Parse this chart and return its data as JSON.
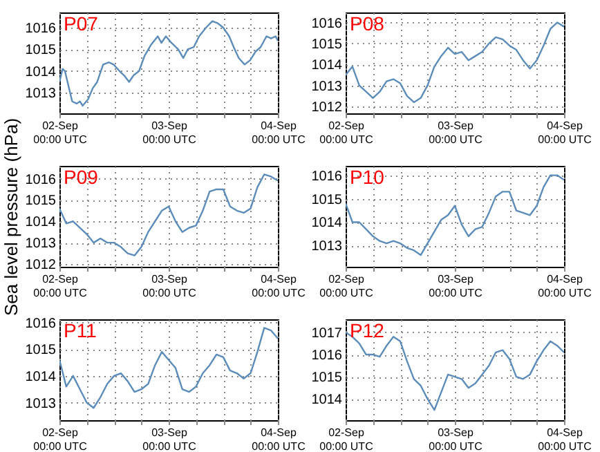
{
  "chart_data": [
    {
      "type": "line",
      "title": "P07",
      "x": [
        "--09-02T00:00",
        "--09-02T00:42",
        "--09-02T01:12",
        "--09-02T02:00",
        "--09-02T02:48",
        "--09-02T03:48",
        "--09-02T04:30",
        "--09-02T05:06",
        "--09-02T06:18",
        "--09-02T07:18",
        "--09-02T08:18",
        "--09-02T09:36",
        "--09-02T10:54",
        "--09-02T11:54",
        "--09-02T13:12",
        "--09-02T14:12",
        "--09-02T15:18",
        "--09-02T16:18",
        "--09-02T17:30",
        "--09-02T18:42",
        "--09-02T20:06",
        "--09-02T21:36",
        "--09-02T22:24",
        "--09-02T23:24",
        "--09-03T00:36",
        "--09-03T02:06",
        "--09-03T03:12",
        "--09-03T04:12",
        "--09-03T05:30",
        "--09-03T06:42",
        "--09-03T08:12",
        "--09-03T09:36",
        "--09-03T10:48",
        "--09-03T12:00",
        "--09-03T13:18",
        "--09-03T14:18",
        "--09-03T15:24",
        "--09-03T16:42",
        "--09-03T17:54",
        "--09-03T19:06",
        "--09-03T20:12",
        "--09-03T21:30",
        "--09-03T22:30",
        "--09-03T23:30",
        "--09-04T00:00"
      ],
      "series": [
        {
          "color": "#5b8db8",
          "values": [
            1013.5,
            1014.1,
            1014.0,
            1013.3,
            1012.6,
            1012.5,
            1012.6,
            1012.4,
            1012.7,
            1013.2,
            1013.5,
            1014.3,
            1014.4,
            1014.3,
            1014.0,
            1013.8,
            1013.5,
            1013.8,
            1014.0,
            1014.7,
            1015.2,
            1015.6,
            1015.3,
            1015.6,
            1015.3,
            1015.0,
            1014.6,
            1015.0,
            1015.1,
            1015.6,
            1016.0,
            1016.3,
            1016.2,
            1016.0,
            1015.6,
            1015.1,
            1014.6,
            1014.3,
            1014.5,
            1014.9,
            1015.1,
            1015.6,
            1015.5,
            1015.6,
            1015.4
          ]
        }
      ],
      "xlim": [
        "--09-02T00:00",
        "--09-04T00:00"
      ],
      "xticks": [
        {
          "value": "--09-02T00:00",
          "label": "02-Sep\n00:00 UTC"
        },
        {
          "value": "--09-02T06:00",
          "label": null
        },
        {
          "value": "--09-02T12:00",
          "label": null
        },
        {
          "value": "--09-02T18:00",
          "label": null
        },
        {
          "value": "--09-03T00:00",
          "label": "03-Sep\n00:00 UTC"
        },
        {
          "value": "--09-03T06:00",
          "label": null
        },
        {
          "value": "--09-03T12:00",
          "label": null
        },
        {
          "value": "--09-03T18:00",
          "label": null
        },
        {
          "value": "--09-04T00:00",
          "label": "04-Sep\n00:00 UTC"
        }
      ],
      "ylim": [
        1012.05,
        1016.7
      ],
      "yticks": [
        1013,
        1014,
        1015,
        1016
      ],
      "grid": true,
      "line_style": "solid"
    },
    {
      "type": "line",
      "title": "P08",
      "x": [
        "--09-02T00:00",
        "--09-02T01:30",
        "--09-02T03:00",
        "--09-02T04:30",
        "--09-02T06:00",
        "--09-02T07:30",
        "--09-02T09:00",
        "--09-02T10:30",
        "--09-02T12:00",
        "--09-02T13:30",
        "--09-02T15:00",
        "--09-02T16:30",
        "--09-02T18:00",
        "--09-02T19:30",
        "--09-02T21:00",
        "--09-02T22:30",
        "--09-03T00:00",
        "--09-03T01:30",
        "--09-03T03:00",
        "--09-03T04:30",
        "--09-03T06:00",
        "--09-03T07:30",
        "--09-03T09:00",
        "--09-03T10:30",
        "--09-03T12:00",
        "--09-03T13:30",
        "--09-03T15:00",
        "--09-03T16:30",
        "--09-03T18:00",
        "--09-03T19:30",
        "--09-03T21:00",
        "--09-03T22:30",
        "--09-04T00:00"
      ],
      "series": [
        {
          "color": "#5b8db8",
          "values": [
            1013.5,
            1013.9,
            1013.0,
            1012.7,
            1012.4,
            1012.7,
            1013.2,
            1013.3,
            1013.1,
            1012.5,
            1012.2,
            1012.4,
            1013.0,
            1013.9,
            1014.4,
            1014.8,
            1014.5,
            1014.6,
            1014.2,
            1014.4,
            1014.6,
            1015.0,
            1015.3,
            1015.2,
            1014.9,
            1014.7,
            1014.2,
            1013.8,
            1014.2,
            1014.9,
            1015.7,
            1016.0,
            1015.8
          ]
        }
      ],
      "xlim": [
        "--09-02T00:00",
        "--09-04T00:00"
      ],
      "xticks": [
        {
          "value": "--09-02T00:00",
          "label": "02-Sep\n00:00 UTC"
        },
        {
          "value": "--09-02T06:00",
          "label": null
        },
        {
          "value": "--09-02T12:00",
          "label": null
        },
        {
          "value": "--09-02T18:00",
          "label": null
        },
        {
          "value": "--09-03T00:00",
          "label": "03-Sep\n00:00 UTC"
        },
        {
          "value": "--09-03T06:00",
          "label": null
        },
        {
          "value": "--09-03T12:00",
          "label": null
        },
        {
          "value": "--09-03T18:00",
          "label": null
        },
        {
          "value": "--09-04T00:00",
          "label": "04-Sep\n00:00 UTC"
        }
      ],
      "ylim": [
        1011.67,
        1016.48
      ],
      "yticks": [
        1012,
        1013,
        1014,
        1015,
        1016
      ],
      "grid": true,
      "line_style": "solid"
    },
    {
      "type": "line",
      "title": "P09",
      "ylabel": "Sea level pressure (hPa)",
      "x": [
        "--09-02T00:00",
        "--09-02T01:30",
        "--09-02T03:00",
        "--09-02T04:30",
        "--09-02T06:00",
        "--09-02T07:30",
        "--09-02T09:00",
        "--09-02T10:30",
        "--09-02T12:00",
        "--09-02T13:30",
        "--09-02T15:00",
        "--09-02T16:30",
        "--09-02T18:00",
        "--09-02T19:30",
        "--09-02T21:00",
        "--09-02T22:30",
        "--09-03T00:00",
        "--09-03T01:30",
        "--09-03T03:00",
        "--09-03T04:30",
        "--09-03T06:00",
        "--09-03T07:30",
        "--09-03T09:00",
        "--09-03T10:30",
        "--09-03T12:00",
        "--09-03T13:30",
        "--09-03T15:00",
        "--09-03T16:30",
        "--09-03T18:00",
        "--09-03T19:30",
        "--09-03T21:00",
        "--09-03T22:30",
        "--09-04T00:00"
      ],
      "series": [
        {
          "color": "#5b8db8",
          "values": [
            1014.6,
            1013.9,
            1014.0,
            1013.7,
            1013.4,
            1013.0,
            1013.2,
            1013.0,
            1013.0,
            1012.8,
            1012.5,
            1012.4,
            1012.8,
            1013.5,
            1014.0,
            1014.5,
            1014.7,
            1014.0,
            1013.5,
            1013.7,
            1013.8,
            1014.5,
            1015.4,
            1015.5,
            1015.5,
            1014.7,
            1014.5,
            1014.4,
            1014.6,
            1015.6,
            1016.2,
            1016.1,
            1015.9
          ]
        }
      ],
      "xlim": [
        "--09-02T00:00",
        "--09-04T00:00"
      ],
      "xticks": [
        {
          "value": "--09-02T00:00",
          "label": "02-Sep\n00:00 UTC"
        },
        {
          "value": "--09-02T06:00",
          "label": null
        },
        {
          "value": "--09-02T12:00",
          "label": null
        },
        {
          "value": "--09-02T18:00",
          "label": null
        },
        {
          "value": "--09-03T00:00",
          "label": "03-Sep\n00:00 UTC"
        },
        {
          "value": "--09-03T06:00",
          "label": null
        },
        {
          "value": "--09-03T12:00",
          "label": null
        },
        {
          "value": "--09-03T18:00",
          "label": null
        },
        {
          "value": "--09-04T00:00",
          "label": "04-Sep\n00:00 UTC"
        }
      ],
      "ylim": [
        1011.87,
        1016.6
      ],
      "yticks": [
        1012,
        1013,
        1014,
        1015,
        1016
      ],
      "grid": true,
      "line_style": "solid"
    },
    {
      "type": "line",
      "title": "P10",
      "x": [
        "--09-02T00:00",
        "--09-02T01:30",
        "--09-02T03:00",
        "--09-02T04:30",
        "--09-02T06:00",
        "--09-02T07:30",
        "--09-02T09:00",
        "--09-02T10:30",
        "--09-02T12:00",
        "--09-02T13:30",
        "--09-02T15:00",
        "--09-02T16:30",
        "--09-02T18:00",
        "--09-02T19:30",
        "--09-02T21:00",
        "--09-02T22:30",
        "--09-03T00:00",
        "--09-03T01:30",
        "--09-03T03:00",
        "--09-03T04:30",
        "--09-03T06:00",
        "--09-03T07:30",
        "--09-03T09:00",
        "--09-03T10:30",
        "--09-03T12:00",
        "--09-03T13:30",
        "--09-03T15:00",
        "--09-03T16:30",
        "--09-03T18:00",
        "--09-03T19:30",
        "--09-03T21:00",
        "--09-03T22:30",
        "--09-04T00:00"
      ],
      "series": [
        {
          "color": "#5b8db8",
          "values": [
            1014.8,
            1014.0,
            1014.0,
            1013.7,
            1013.4,
            1013.2,
            1013.1,
            1013.2,
            1013.1,
            1012.9,
            1012.8,
            1012.6,
            1013.1,
            1013.6,
            1014.1,
            1014.3,
            1014.7,
            1013.9,
            1013.4,
            1013.7,
            1013.8,
            1014.4,
            1015.1,
            1015.3,
            1015.3,
            1014.5,
            1014.4,
            1014.3,
            1014.7,
            1015.5,
            1016.0,
            1016.0,
            1015.8
          ]
        }
      ],
      "xlim": [
        "--09-02T00:00",
        "--09-04T00:00"
      ],
      "xticks": [
        {
          "value": "--09-02T00:00",
          "label": "02-Sep\n00:00 UTC"
        },
        {
          "value": "--09-02T06:00",
          "label": null
        },
        {
          "value": "--09-02T12:00",
          "label": null
        },
        {
          "value": "--09-02T18:00",
          "label": null
        },
        {
          "value": "--09-03T00:00",
          "label": "03-Sep\n00:00 UTC"
        },
        {
          "value": "--09-03T06:00",
          "label": null
        },
        {
          "value": "--09-03T12:00",
          "label": null
        },
        {
          "value": "--09-03T18:00",
          "label": null
        },
        {
          "value": "--09-04T00:00",
          "label": "04-Sep\n00:00 UTC"
        }
      ],
      "ylim": [
        1012.1,
        1016.4
      ],
      "yticks": [
        1013,
        1014,
        1015,
        1016
      ],
      "grid": true,
      "line_style": "solid"
    },
    {
      "type": "line",
      "title": "P11",
      "x": [
        "--09-02T00:00",
        "--09-02T01:30",
        "--09-02T03:00",
        "--09-02T04:30",
        "--09-02T06:00",
        "--09-02T07:30",
        "--09-02T09:00",
        "--09-02T10:30",
        "--09-02T12:00",
        "--09-02T13:30",
        "--09-02T15:00",
        "--09-02T16:30",
        "--09-02T18:00",
        "--09-02T19:30",
        "--09-02T21:00",
        "--09-02T22:30",
        "--09-03T00:00",
        "--09-03T01:30",
        "--09-03T03:00",
        "--09-03T04:30",
        "--09-03T06:00",
        "--09-03T07:30",
        "--09-03T09:00",
        "--09-03T10:30",
        "--09-03T12:00",
        "--09-03T13:30",
        "--09-03T15:00",
        "--09-03T16:30",
        "--09-03T18:00",
        "--09-03T19:30",
        "--09-03T21:00",
        "--09-03T22:30",
        "--09-04T00:00"
      ],
      "series": [
        {
          "color": "#5b8db8",
          "values": [
            1014.6,
            1013.6,
            1014.0,
            1013.5,
            1013.0,
            1012.8,
            1013.2,
            1013.7,
            1014.0,
            1014.1,
            1013.8,
            1013.4,
            1013.5,
            1013.7,
            1014.4,
            1014.9,
            1014.6,
            1014.3,
            1013.5,
            1013.4,
            1013.6,
            1014.1,
            1014.4,
            1014.8,
            1014.7,
            1014.2,
            1014.1,
            1013.9,
            1014.1,
            1014.9,
            1015.8,
            1015.7,
            1015.4
          ]
        }
      ],
      "xlim": [
        "--09-02T00:00",
        "--09-04T00:00"
      ],
      "xticks": [
        {
          "value": "--09-02T00:00",
          "label": "02-Sep\n00:00 UTC"
        },
        {
          "value": "--09-02T06:00",
          "label": null
        },
        {
          "value": "--09-02T12:00",
          "label": null
        },
        {
          "value": "--09-02T18:00",
          "label": null
        },
        {
          "value": "--09-03T00:00",
          "label": "03-Sep\n00:00 UTC"
        },
        {
          "value": "--09-03T06:00",
          "label": null
        },
        {
          "value": "--09-03T12:00",
          "label": null
        },
        {
          "value": "--09-03T18:00",
          "label": null
        },
        {
          "value": "--09-04T00:00",
          "label": "04-Sep\n00:00 UTC"
        }
      ],
      "ylim": [
        1012.34,
        1016.12
      ],
      "yticks": [
        1013,
        1014,
        1015,
        1016
      ],
      "grid": true,
      "line_style": "solid"
    },
    {
      "type": "line",
      "title": "P12",
      "x": [
        "--09-02T00:00",
        "--09-02T01:30",
        "--09-02T03:00",
        "--09-02T04:30",
        "--09-02T06:00",
        "--09-02T07:30",
        "--09-02T09:00",
        "--09-02T10:30",
        "--09-02T12:00",
        "--09-02T13:30",
        "--09-02T15:00",
        "--09-02T16:30",
        "--09-02T18:00",
        "--09-02T19:30",
        "--09-02T21:00",
        "--09-02T22:30",
        "--09-03T00:00",
        "--09-03T01:30",
        "--09-03T03:00",
        "--09-03T04:30",
        "--09-03T06:00",
        "--09-03T07:30",
        "--09-03T09:00",
        "--09-03T10:30",
        "--09-03T12:00",
        "--09-03T13:30",
        "--09-03T15:00",
        "--09-03T16:30",
        "--09-03T18:00",
        "--09-03T19:30",
        "--09-03T21:00",
        "--09-03T22:30",
        "--09-04T00:00"
      ],
      "series": [
        {
          "color": "#5b8db8",
          "values": [
            1017.0,
            1016.8,
            1016.5,
            1016.0,
            1016.0,
            1015.9,
            1016.4,
            1016.8,
            1016.6,
            1015.7,
            1014.9,
            1014.6,
            1014.0,
            1013.5,
            1014.3,
            1015.1,
            1015.0,
            1014.9,
            1014.5,
            1014.7,
            1015.1,
            1015.5,
            1016.1,
            1016.2,
            1015.8,
            1015.0,
            1014.9,
            1015.1,
            1015.7,
            1016.2,
            1016.6,
            1016.4,
            1016.1
          ]
        }
      ],
      "xlim": [
        "--09-02T00:00",
        "--09-04T00:00"
      ],
      "xticks": [
        {
          "value": "--09-02T00:00",
          "label": "02-Sep\n00:00 UTC"
        },
        {
          "value": "--09-02T06:00",
          "label": null
        },
        {
          "value": "--09-02T12:00",
          "label": null
        },
        {
          "value": "--09-02T18:00",
          "label": null
        },
        {
          "value": "--09-03T00:00",
          "label": "03-Sep\n00:00 UTC"
        },
        {
          "value": "--09-03T06:00",
          "label": null
        },
        {
          "value": "--09-03T12:00",
          "label": null
        },
        {
          "value": "--09-03T18:00",
          "label": null
        },
        {
          "value": "--09-04T00:00",
          "label": "04-Sep\n00:00 UTC"
        }
      ],
      "ylim": [
        1013.04,
        1017.59
      ],
      "yticks": [
        1014,
        1015,
        1016,
        1017
      ],
      "grid": true,
      "line_style": "solid"
    }
  ]
}
